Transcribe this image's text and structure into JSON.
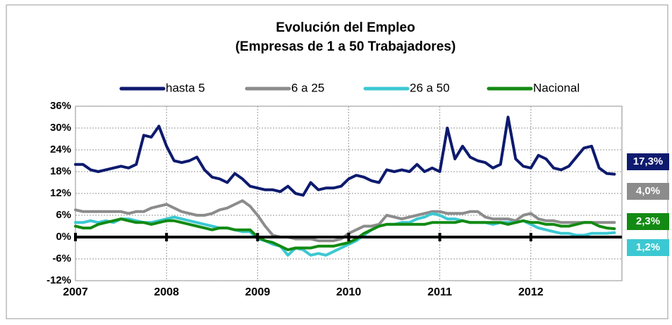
{
  "chart_data": {
    "type": "line",
    "title": "Evolución del Empleo",
    "subtitle": "(Empresas de 1 a 50 Trabajadores)",
    "legend": "top",
    "grid": true,
    "x": [
      2007,
      2007.083,
      2007.167,
      2007.25,
      2007.333,
      2007.417,
      2007.5,
      2007.583,
      2007.667,
      2007.75,
      2007.833,
      2007.917,
      2008,
      2008.083,
      2008.167,
      2008.25,
      2008.333,
      2008.417,
      2008.5,
      2008.583,
      2008.667,
      2008.75,
      2008.833,
      2008.917,
      2009,
      2009.083,
      2009.167,
      2009.25,
      2009.333,
      2009.417,
      2009.5,
      2009.583,
      2009.667,
      2009.75,
      2009.833,
      2009.917,
      2010,
      2010.083,
      2010.167,
      2010.25,
      2010.333,
      2010.417,
      2010.5,
      2010.583,
      2010.667,
      2010.75,
      2010.833,
      2010.917,
      2011,
      2011.083,
      2011.167,
      2011.25,
      2011.333,
      2011.417,
      2011.5,
      2011.583,
      2011.667,
      2011.75,
      2011.833,
      2011.917,
      2012,
      2012.083,
      2012.167,
      2012.25,
      2012.333,
      2012.417,
      2012.5,
      2012.583,
      2012.667,
      2012.75,
      2012.833,
      2012.917
    ],
    "xlim": [
      2007,
      2013
    ],
    "xticks": [
      2007,
      2008,
      2009,
      2010,
      2011,
      2012
    ],
    "ylim": [
      -12,
      36
    ],
    "yticks": [
      {
        "value": -12,
        "label": "-12%"
      },
      {
        "value": -6,
        "label": "-6%"
      },
      {
        "value": 0,
        "label": "0%"
      },
      {
        "value": 6,
        "label": "6%"
      },
      {
        "value": 12,
        "label": "12%"
      },
      {
        "value": 18,
        "label": "18%"
      },
      {
        "value": 24,
        "label": "24%"
      },
      {
        "value": 30,
        "label": "30%"
      },
      {
        "value": 36,
        "label": "36%"
      }
    ],
    "series": [
      {
        "name": "hasta 5",
        "color": "#0d1a6e",
        "end_label": "17,3%",
        "values": [
          20,
          20,
          18.5,
          18,
          18.5,
          19,
          19.5,
          19,
          20,
          28,
          27.5,
          30.5,
          25,
          21,
          20.5,
          21,
          22,
          18.5,
          16.5,
          16,
          15,
          17.5,
          16,
          14,
          13.5,
          13,
          13,
          12.5,
          14,
          12,
          11.5,
          15,
          13,
          13.5,
          13.5,
          14,
          16,
          17,
          16.5,
          15.5,
          15,
          18.5,
          18,
          18.5,
          18,
          20,
          18,
          19,
          18,
          30,
          21.5,
          25,
          22,
          21,
          20.5,
          19,
          20,
          33,
          21.5,
          19.5,
          19,
          22.5,
          21.5,
          19,
          18.5,
          19.5,
          22,
          24.5,
          25,
          19,
          17.5,
          17.3
        ]
      },
      {
        "name": "6 a 25",
        "color": "#8c8c8c",
        "end_label": "4,0%",
        "values": [
          7.5,
          7,
          7,
          7,
          7,
          7,
          7,
          6.5,
          7,
          7,
          8,
          8.5,
          9,
          8,
          7,
          6.5,
          6,
          6,
          6.5,
          7.5,
          8,
          9,
          10,
          8.5,
          6,
          3,
          0.5,
          0,
          0,
          -0.5,
          -0.5,
          -0.5,
          -1,
          -1,
          -1,
          -0.5,
          1,
          2,
          3,
          3,
          3.5,
          6,
          5.5,
          5,
          5.5,
          6,
          6.5,
          7,
          7,
          6.5,
          6.5,
          6.5,
          7,
          7,
          5.5,
          5,
          5,
          5,
          4.5,
          6,
          6.5,
          5,
          4.5,
          4.5,
          4,
          4,
          4,
          4,
          4,
          4,
          4,
          4.0
        ]
      },
      {
        "name": "26 a 50",
        "color": "#3cc8d2",
        "end_label": "1,2%",
        "values": [
          4,
          4,
          4.5,
          4,
          4.5,
          4,
          5,
          5,
          4.5,
          4,
          4,
          4.5,
          5,
          5.5,
          5,
          4.5,
          4,
          3.5,
          3,
          2.5,
          2.5,
          2,
          1.5,
          1.5,
          -0.5,
          -1,
          -2,
          -2.5,
          -5,
          -3,
          -3.5,
          -5,
          -4.5,
          -5,
          -4,
          -3,
          -2,
          -1,
          0.5,
          2,
          3,
          3.5,
          3.5,
          4,
          4,
          5,
          5.5,
          6.5,
          6,
          5,
          5,
          4.5,
          4,
          4,
          4,
          3.5,
          4,
          4,
          4,
          4.5,
          3.5,
          2.5,
          2,
          1.5,
          1,
          1,
          0.5,
          0.5,
          1,
          1,
          1,
          1.2
        ]
      },
      {
        "name": "Nacional",
        "color": "#138a13",
        "end_label": "2,3%",
        "values": [
          3,
          2.5,
          2.5,
          3.5,
          4,
          4.5,
          5,
          4.5,
          4,
          4,
          3.5,
          4,
          4.5,
          4.5,
          4,
          3.5,
          3,
          2.5,
          2,
          2.5,
          2.5,
          2,
          2,
          2,
          0,
          -1,
          -1.5,
          -2.5,
          -3.5,
          -3,
          -3,
          -3,
          -2.5,
          -2.5,
          -2.5,
          -2,
          -1.5,
          -0.5,
          1,
          2,
          3,
          3.5,
          3.5,
          3.5,
          3.5,
          3.5,
          3.5,
          4,
          4,
          4,
          4,
          4.5,
          4,
          4,
          4,
          4,
          4,
          3.5,
          4,
          4.5,
          4,
          4,
          3.5,
          3.5,
          3,
          3,
          3.5,
          4,
          4,
          3,
          2.5,
          2.3
        ]
      }
    ]
  }
}
